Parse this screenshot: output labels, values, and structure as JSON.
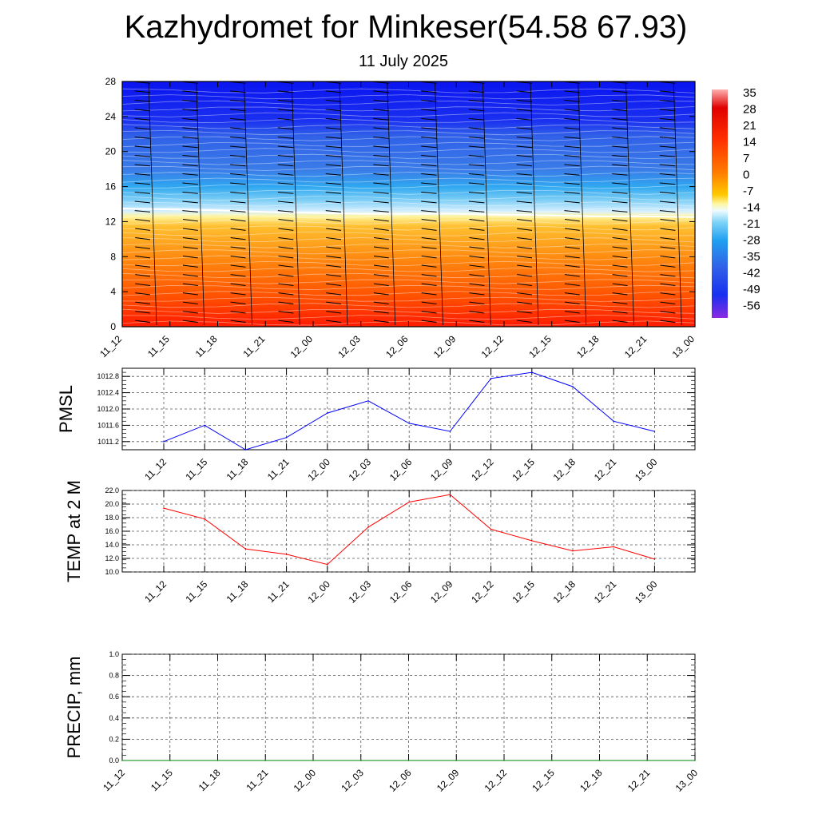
{
  "title": "Kazhydromet for Minkeser(54.58 67.93)",
  "subtitle": "11 July 2025",
  "colors": {
    "pmsl_line": "#0000ff",
    "temp_line": "#ff0000",
    "precip_line": "#008000",
    "grid": "#555555"
  },
  "chart_data": [
    {
      "type": "heatmap",
      "name": "meteogram-cross-section",
      "categories": [
        "11_12",
        "11_15",
        "11_18",
        "11_21",
        "12_00",
        "12_03",
        "12_06",
        "12_09",
        "12_12",
        "12_15",
        "12_18",
        "12_21",
        "13_00"
      ],
      "y_ticks": [
        "0",
        "4",
        "8",
        "12",
        "16",
        "20",
        "24",
        "28"
      ],
      "ylim": [
        0,
        28
      ],
      "colorbar_labels": [
        "35",
        "28",
        "21",
        "14",
        "7",
        "0",
        "-7",
        "-14",
        "-21",
        "-28",
        "-35",
        "-42",
        "-49",
        "-56"
      ],
      "freezing_level": [
        13.5,
        13.4,
        13.3,
        13.1,
        13.0,
        12.9,
        12.9,
        12.9,
        12.8,
        12.7,
        12.6,
        12.6,
        12.5
      ],
      "grid": false
    },
    {
      "type": "line",
      "ylabel": "PMSL",
      "categories": [
        "11_12",
        "11_15",
        "11_18",
        "11_21",
        "12_00",
        "12_03",
        "12_06",
        "12_09",
        "12_12",
        "12_15",
        "12_18",
        "12_21",
        "13_00"
      ],
      "series": [
        {
          "values": [
            1011.2,
            1011.6,
            1011.0,
            1011.3,
            1011.9,
            1012.2,
            1011.65,
            1011.45,
            1012.75,
            1012.9,
            1012.55,
            1011.7,
            1011.45
          ]
        }
      ],
      "y_ticks": [
        "1011.2",
        "1011.6",
        "1012.0",
        "1012.4",
        "1012.8"
      ],
      "ylim": [
        1011.0,
        1013.0
      ],
      "grid": true
    },
    {
      "type": "line",
      "ylabel": "TEMP at 2 M",
      "categories": [
        "11_12",
        "11_15",
        "11_18",
        "11_21",
        "12_00",
        "12_03",
        "12_06",
        "12_09",
        "12_12",
        "12_15",
        "12_18",
        "12_21",
        "13_00"
      ],
      "series": [
        {
          "values": [
            19.4,
            17.8,
            13.4,
            12.6,
            11.1,
            16.6,
            20.3,
            21.4,
            16.3,
            14.6,
            13.1,
            13.7,
            11.9
          ]
        }
      ],
      "y_ticks": [
        "10.0",
        "12.0",
        "14.0",
        "16.0",
        "18.0",
        "20.0",
        "22.0"
      ],
      "ylim": [
        10.0,
        22.0
      ],
      "grid": true
    },
    {
      "type": "line",
      "ylabel": "PRECIP, mm",
      "categories": [
        "11_12",
        "11_15",
        "11_18",
        "11_21",
        "12_00",
        "12_03",
        "12_06",
        "12_09",
        "12_12",
        "12_15",
        "12_18",
        "12_21",
        "13_00"
      ],
      "series": [
        {
          "values": [
            0,
            0,
            0,
            0,
            0,
            0,
            0,
            0,
            0,
            0,
            0,
            0,
            0
          ]
        }
      ],
      "y_ticks": [
        "0.0",
        "0.2",
        "0.4",
        "0.6",
        "0.8",
        "1.0"
      ],
      "ylim": [
        0.0,
        1.0
      ],
      "grid": true
    }
  ]
}
